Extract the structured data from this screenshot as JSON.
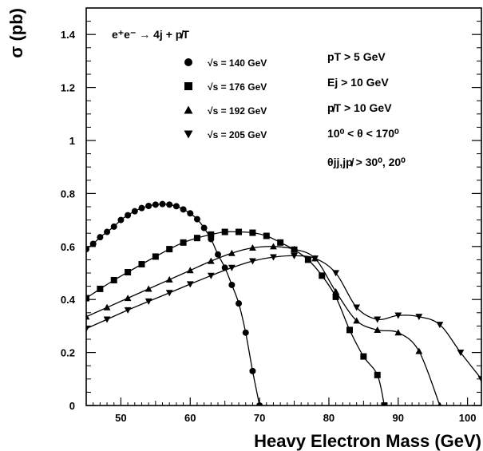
{
  "chart_data": {
    "type": "line",
    "title": "",
    "xlabel": "Heavy Electron  Mass (GeV)",
    "ylabel": "σ (pb)",
    "xlim": [
      45,
      102
    ],
    "ylim": [
      0,
      1.5
    ],
    "xticks": [
      50,
      60,
      70,
      80,
      90,
      100
    ],
    "yticks": [
      0,
      0.2,
      0.4,
      0.6,
      0.8,
      1,
      1.2,
      1.4
    ],
    "xtick_labels": [
      "50",
      "60",
      "70",
      "80",
      "90",
      "100"
    ],
    "ytick_labels": [
      "0",
      "0.2",
      "0.4",
      "0.6",
      "0.8",
      "1",
      "1.2",
      "1.4"
    ],
    "grid": false,
    "legend_position": "top-left",
    "process_label": "e⁺e⁻ → 4j + p̸T",
    "cuts": [
      "pT > 5 GeV",
      "Ej > 10 GeV",
      "p̸T > 10 GeV",
      "10⁰ < θ < 170⁰",
      "θjj,jp̸ > 30⁰, 20⁰"
    ],
    "series": [
      {
        "name": "√s = 140 GeV",
        "marker": "circle",
        "x": [
          45,
          46,
          47,
          48,
          49,
          50,
          51,
          52,
          53,
          54,
          55,
          56,
          57,
          58,
          59,
          60,
          61,
          62,
          63,
          64,
          65,
          66,
          67,
          68,
          69,
          70
        ],
        "y": [
          0.59,
          0.61,
          0.635,
          0.655,
          0.675,
          0.7,
          0.718,
          0.733,
          0.745,
          0.753,
          0.758,
          0.76,
          0.758,
          0.752,
          0.74,
          0.725,
          0.703,
          0.67,
          0.628,
          0.57,
          0.52,
          0.455,
          0.385,
          0.275,
          0.13,
          0.0
        ]
      },
      {
        "name": "√s = 176 GeV",
        "marker": "square",
        "x": [
          45,
          47,
          49,
          51,
          53,
          55,
          57,
          59,
          61,
          63,
          65,
          67,
          69,
          71,
          73,
          75,
          77,
          79,
          81,
          83,
          85,
          87,
          88
        ],
        "y": [
          0.405,
          0.44,
          0.473,
          0.503,
          0.533,
          0.562,
          0.59,
          0.615,
          0.632,
          0.645,
          0.655,
          0.655,
          0.652,
          0.64,
          0.615,
          0.588,
          0.55,
          0.49,
          0.41,
          0.285,
          0.185,
          0.115,
          0.0
        ]
      },
      {
        "name": "√s = 192 GeV",
        "marker": "triangle-up",
        "x": [
          45,
          48,
          51,
          54,
          57,
          60,
          63,
          66,
          69,
          72,
          75,
          78,
          81,
          84,
          87,
          90,
          93,
          96
        ],
        "y": [
          0.335,
          0.37,
          0.405,
          0.44,
          0.475,
          0.51,
          0.545,
          0.575,
          0.595,
          0.6,
          0.59,
          0.555,
          0.43,
          0.32,
          0.285,
          0.275,
          0.205,
          0.0
        ]
      },
      {
        "name": "√s = 205 GeV",
        "marker": "triangle-down",
        "x": [
          45,
          48,
          51,
          54,
          57,
          60,
          63,
          66,
          69,
          72,
          75,
          78,
          81,
          84,
          87,
          90,
          93,
          96,
          99,
          102
        ],
        "y": [
          0.29,
          0.325,
          0.36,
          0.393,
          0.425,
          0.458,
          0.49,
          0.52,
          0.545,
          0.56,
          0.565,
          0.555,
          0.5,
          0.37,
          0.325,
          0.34,
          0.335,
          0.305,
          0.2,
          0.1
        ]
      }
    ]
  }
}
